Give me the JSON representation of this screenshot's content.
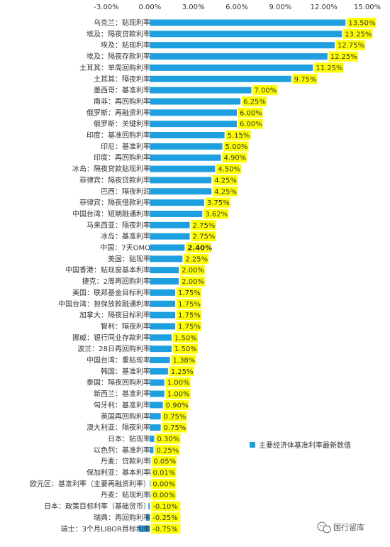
{
  "chart_data": {
    "type": "bar",
    "orientation": "horizontal",
    "xlim": [
      -3,
      15
    ],
    "x_ticks": [
      "-3.00%",
      "0.00%",
      "3.00%",
      "6.00%",
      "9.00%",
      "12.00%",
      "15.00%"
    ],
    "x_tick_values": [
      -3,
      0,
      3,
      6,
      9,
      12,
      15
    ],
    "grid": false,
    "legend_position": "right",
    "highlight_color": "#ffff00",
    "bar_color": "#1ea0e0",
    "emphasis_color": "#ff0000",
    "series": [
      {
        "name": "主要经济体基准利率最新数值",
        "values": [
          13.5,
          13.25,
          12.75,
          12.25,
          11.25,
          9.75,
          7.0,
          6.25,
          6.0,
          6.0,
          5.15,
          5.0,
          4.9,
          4.5,
          4.25,
          4.25,
          3.75,
          3.62,
          2.75,
          2.75,
          2.4,
          2.25,
          2.0,
          2.0,
          1.75,
          1.75,
          1.75,
          1.75,
          1.5,
          1.5,
          1.38,
          1.25,
          1.0,
          1.0,
          0.9,
          0.75,
          0.75,
          0.3,
          0.25,
          0.05,
          0.01,
          0.0,
          0.0,
          -0.1,
          -0.25,
          -0.75
        ]
      }
    ],
    "categories": [
      "乌克兰：贴现利率",
      "埃及：隔夜贷款利率",
      "埃及：贴现利率",
      "埃及：隔夜存款利率",
      "土耳其：单周回购利率",
      "土耳其：隔夜利率",
      "墨西哥：基准利率",
      "南非：再回购利率",
      "俄罗斯：再融资利率",
      "俄罗斯：关键利率",
      "印度：基准回购利率",
      "印尼：基准利率",
      "印度：再回购利率",
      "冰岛：隔夜贷款贴现利率",
      "菲律宾：隔夜贷款利率",
      "巴西：隔夜利润",
      "菲律宾：隔夜借款利率",
      "中国台湾：短期融通利率",
      "马来西亚：隔夜利率",
      "冰岛：基准利率",
      "中国：7天OMO",
      "美国：贴现率",
      "中国香港：贴现窗基本利率",
      "捷克：2周再回购利率",
      "美国：联邦基金目标利率",
      "中国台湾：担保放款融通利率",
      "加拿大：隔夜目标利率",
      "智利：隔夜利率",
      "挪威：银行同业存款利率",
      "波兰：28日再回购利率",
      "中国台湾：重贴现率",
      "韩国：基准利率",
      "泰国：隔夜回购利率",
      "新西兰：基准利率",
      "匈牙利：基准利率",
      "英国再回购利率",
      "澳大利亚：隔夜利率",
      "日本：贴现率",
      "以色列：基准利率",
      "丹麦：贷款利率",
      "保加利亚：基本利率",
      "欧元区：基准利率（主要再融资利率）",
      "丹麦：贴现利率",
      "日本：政策目标利率（基础货币）",
      "瑞典：再回购利率",
      "瑞士：3个月LIBOR目标利率"
    ],
    "data_labels": [
      "13.50%",
      "13.25%",
      "12.75%",
      "12.25%",
      "11.25%",
      "9.75%",
      "7.00%",
      "6.25%",
      "6.00%",
      "6.00%",
      "5.15%",
      "5.00%",
      "4.90%",
      "4.50%",
      "4.25%",
      "4.25%",
      "3.75%",
      "3.62%",
      "2.75%",
      "2.75%",
      "2.40%",
      "2.25%",
      "2.00%",
      "2.00%",
      "1.75%",
      "1.75%",
      "1.75%",
      "1.75%",
      "1.50%",
      "1.50%",
      "1.38%",
      "1.25%",
      "1.00%",
      "1.00%",
      "0.90%",
      "0.75%",
      "0.75%",
      "0.30%",
      "0.25%",
      "0.05%",
      "0.01%",
      "0.00%",
      "0.00%",
      "-0.10%",
      "-0.25%",
      "-0.75%"
    ],
    "emphasized_index": 20
  },
  "watermark": {
    "text": "国行留库",
    "icon": "wechat-icon"
  }
}
